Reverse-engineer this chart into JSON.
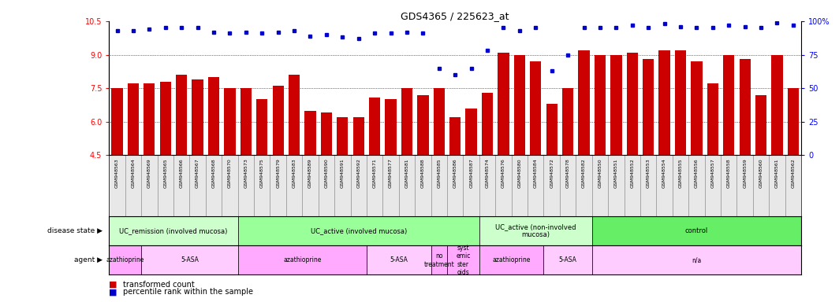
{
  "title": "GDS4365 / 225623_at",
  "samples": [
    "GSM948563",
    "GSM948564",
    "GSM948569",
    "GSM948565",
    "GSM948566",
    "GSM948567",
    "GSM948568",
    "GSM948570",
    "GSM948573",
    "GSM948575",
    "GSM948579",
    "GSM948583",
    "GSM948589",
    "GSM948590",
    "GSM948591",
    "GSM948592",
    "GSM948571",
    "GSM948577",
    "GSM948581",
    "GSM948588",
    "GSM948585",
    "GSM948586",
    "GSM948587",
    "GSM948574",
    "GSM948576",
    "GSM948580",
    "GSM948584",
    "GSM948572",
    "GSM948578",
    "GSM948582",
    "GSM948550",
    "GSM948551",
    "GSM948552",
    "GSM948553",
    "GSM948554",
    "GSM948555",
    "GSM948556",
    "GSM948557",
    "GSM948558",
    "GSM948559",
    "GSM948560",
    "GSM948561",
    "GSM948562"
  ],
  "bar_values": [
    7.5,
    7.7,
    7.7,
    7.8,
    8.1,
    7.9,
    8.0,
    7.5,
    7.5,
    7.0,
    7.6,
    8.1,
    6.5,
    6.4,
    6.2,
    6.2,
    7.1,
    7.0,
    7.5,
    7.2,
    7.5,
    6.2,
    6.6,
    7.3,
    9.1,
    9.0,
    8.7,
    6.8,
    7.5,
    9.2,
    9.0,
    9.0,
    9.1,
    8.8,
    9.2,
    9.2,
    8.7,
    7.7,
    9.0,
    8.8,
    7.2,
    9.0,
    7.5
  ],
  "percentile_values": [
    93,
    93,
    94,
    95,
    95,
    95,
    92,
    91,
    92,
    91,
    92,
    93,
    89,
    90,
    88,
    87,
    91,
    91,
    92,
    91,
    65,
    60,
    65,
    78,
    95,
    93,
    95,
    63,
    75,
    95,
    95,
    95,
    97,
    95,
    98,
    96,
    95,
    95,
    97,
    96,
    95,
    99,
    97
  ],
  "ymin": 4.5,
  "ymax": 10.5,
  "yticks_left": [
    4.5,
    6.0,
    7.5,
    9.0,
    10.5
  ],
  "yticks_right": [
    0,
    25,
    50,
    75,
    100
  ],
  "bar_color": "#cc0000",
  "dot_color": "#0000cc",
  "disease_state_groups": [
    {
      "label": "UC_remission (involved mucosa)",
      "start": 0,
      "end": 8,
      "color": "#ccffcc"
    },
    {
      "label": "UC_active (involved mucosa)",
      "start": 8,
      "end": 23,
      "color": "#99ff99"
    },
    {
      "label": "UC_active (non-involved\nmucosa)",
      "start": 23,
      "end": 30,
      "color": "#ccffcc"
    },
    {
      "label": "control",
      "start": 30,
      "end": 43,
      "color": "#66ee66"
    }
  ],
  "agent_groups": [
    {
      "label": "azathioprine",
      "start": 0,
      "end": 2,
      "color": "#ffaaff"
    },
    {
      "label": "5-ASA",
      "start": 2,
      "end": 8,
      "color": "#ffccff"
    },
    {
      "label": "azathioprine",
      "start": 8,
      "end": 16,
      "color": "#ffaaff"
    },
    {
      "label": "5-ASA",
      "start": 16,
      "end": 20,
      "color": "#ffccff"
    },
    {
      "label": "no\ntreatment",
      "start": 20,
      "end": 21,
      "color": "#ffaaff"
    },
    {
      "label": "syst\nemic\nster\noids",
      "start": 21,
      "end": 23,
      "color": "#ffaaff"
    },
    {
      "label": "azathioprine",
      "start": 23,
      "end": 27,
      "color": "#ffaaff"
    },
    {
      "label": "5-ASA",
      "start": 27,
      "end": 30,
      "color": "#ffccff"
    },
    {
      "label": "n/a",
      "start": 30,
      "end": 43,
      "color": "#ffccff"
    }
  ],
  "background_color": "#ffffff"
}
